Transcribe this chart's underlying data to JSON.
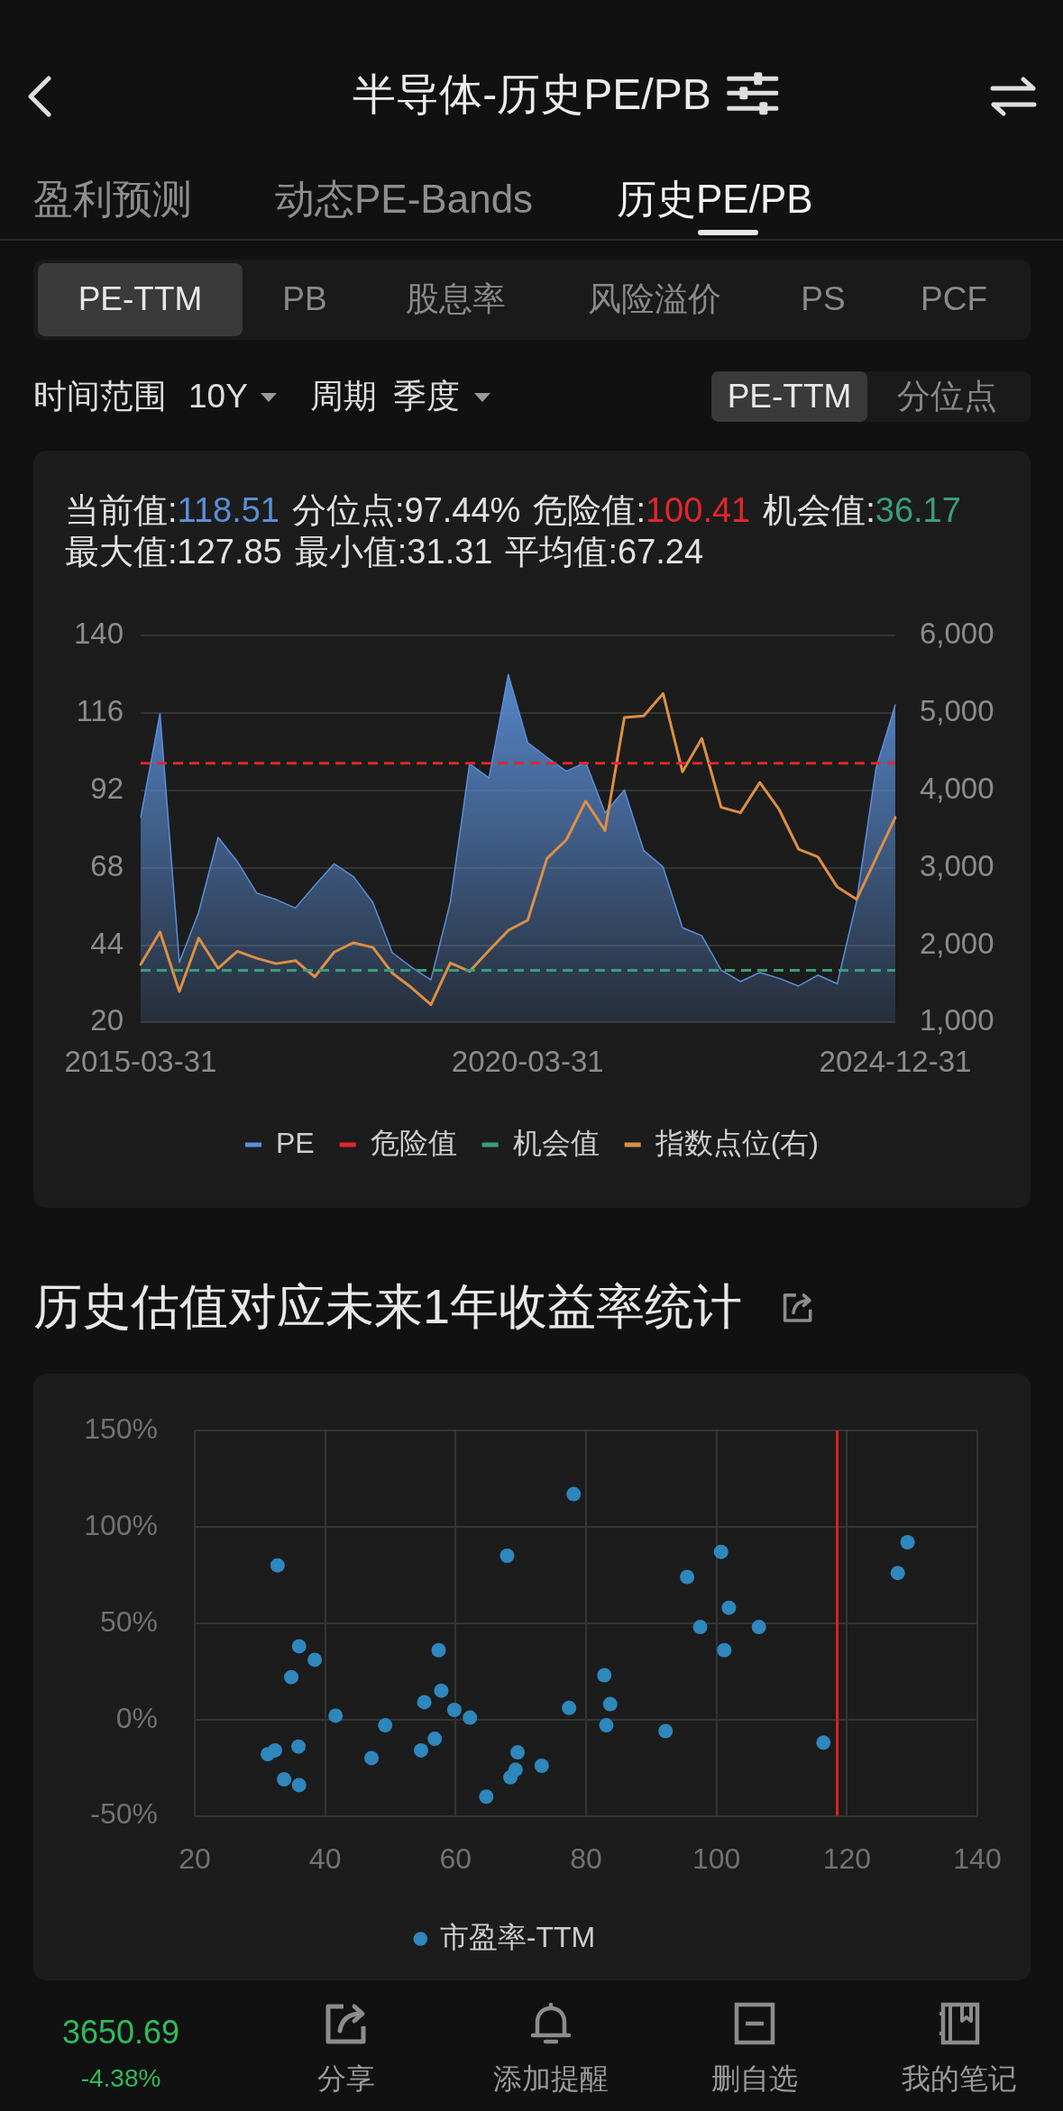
{
  "chart_data": [
    {
      "type": "other",
      "title": "半导体-历史PE/PB",
      "annotations": [
        "盈利预测",
        "动态PE-Bands",
        "历史PE/PB",
        "PE-TTM",
        "PB",
        "股息率",
        "风险溢价",
        "PS",
        "PCF",
        "时间范围",
        "10Y",
        "周期",
        "季度",
        "PE-TTM",
        "分位点"
      ]
    },
    {
      "type": "area",
      "annotations": [
        "当前值:118.51",
        "分位点:97.44%",
        "危险值:100.41",
        "机会值:36.17",
        "最大值:127.85",
        "最小值:31.31",
        "平均值:67.24"
      ],
      "categories": [
        "2015-03-31",
        null,
        null,
        null,
        null,
        null,
        null,
        null,
        null,
        null,
        null,
        null,
        null,
        null,
        null,
        null,
        null,
        null,
        null,
        null,
        "2020-03-31",
        null,
        null,
        null,
        null,
        null,
        null,
        null,
        null,
        null,
        null,
        null,
        null,
        null,
        null,
        null,
        null,
        null,
        null,
        "2024-12-31"
      ],
      "series": [
        {
          "name": "PE",
          "type": "area",
          "color": "#5b8fd8",
          "values": [
            83.6,
            115.8,
            38.6,
            54.2,
            77.4,
            69.9,
            60.1,
            58.1,
            55.5,
            62.5,
            69.2,
            65.2,
            57.2,
            41.7,
            37.1,
            33.2,
            57.2,
            100.2,
            95.8,
            127.9,
            106.8,
            102.2,
            97.9,
            100.7,
            85.0,
            92.1,
            73.3,
            68.2,
            49.4,
            46.9,
            36.2,
            32.7,
            35.5,
            33.7,
            31.3,
            34.7,
            32.0,
            57.6,
            98.7,
            118.5
          ]
        },
        {
          "name": "指数点位(右)",
          "type": "line",
          "axis": "y2",
          "color": "#dc8f45",
          "values": [
            1750,
            2170,
            1400,
            2090,
            1700,
            1920,
            1830,
            1760,
            1800,
            1590,
            1910,
            2030,
            1970,
            1640,
            1450,
            1230,
            1770,
            1660,
            1930,
            2190,
            2320,
            3120,
            3360,
            3860,
            3480,
            4940,
            4960,
            5250,
            4240,
            4670,
            3780,
            3710,
            4100,
            3750,
            3240,
            3140,
            2750,
            2590,
            3120,
            3650
          ]
        }
      ],
      "ylim": [
        20,
        140
      ],
      "yticks": [
        20,
        44,
        68,
        92,
        116,
        140
      ],
      "y2lim": [
        1000,
        6000
      ],
      "y2ticks": [
        {
          "value": 1000,
          "label": "1,000"
        },
        {
          "value": 2000,
          "label": "2,000"
        },
        {
          "value": 3000,
          "label": "3,000"
        },
        {
          "value": 4000,
          "label": "4,000"
        },
        {
          "value": 5000,
          "label": "5,000"
        },
        {
          "value": 6000,
          "label": "6,000"
        }
      ],
      "ref_lines": [
        {
          "axis": "y",
          "value": 100.41,
          "label": "危险值",
          "color": "#e3262b",
          "line_style": "dashed"
        },
        {
          "axis": "y",
          "value": 36.17,
          "label": "机会值",
          "color": "#3a9e7a",
          "line_style": "dashed"
        }
      ],
      "grid": "y",
      "legend": "bottom"
    },
    {
      "type": "scatter",
      "title": "历史估值对应未来1年收益率统计",
      "marker": "circle",
      "series": [
        {
          "name": "市盈率-TTM",
          "color": "#2e87bd",
          "x": [
            31.2,
            32.3,
            32.7,
            33.7,
            34.8,
            35.9,
            36.0,
            36.0,
            38.4,
            41.6,
            47.1,
            49.2,
            54.7,
            55.2,
            56.8,
            57.4,
            57.8,
            59.8,
            62.2,
            64.7,
            67.9,
            68.4,
            69.2,
            69.5,
            73.2,
            77.4,
            78.1,
            82.8,
            83.1,
            83.7,
            92.2,
            95.5,
            97.5,
            100.7,
            101.2,
            101.9,
            106.5,
            116.4,
            127.8,
            129.3
          ],
          "values": [
            -18,
            -16,
            80,
            -31,
            22,
            -14,
            38,
            -34,
            31,
            2,
            -20,
            -3,
            -16,
            9,
            -10,
            36,
            15,
            5,
            1,
            -40,
            85,
            -30,
            -26,
            -17,
            -24,
            6,
            117,
            23,
            -3,
            8,
            -6,
            74,
            48,
            87,
            36,
            58,
            48,
            -12,
            76,
            92
          ]
        }
      ],
      "xlim": [
        20,
        140
      ],
      "xticks": [
        20,
        40,
        60,
        80,
        100,
        120,
        140
      ],
      "ylim": [
        -50,
        150
      ],
      "yticks": [
        {
          "value": -50,
          "label": "-50%"
        },
        {
          "value": 0,
          "label": "0%"
        },
        {
          "value": 50,
          "label": "50%"
        },
        {
          "value": 100,
          "label": "100%"
        },
        {
          "value": 150,
          "label": "150%"
        }
      ],
      "ref_lines": [
        {
          "axis": "x",
          "value": 118.51,
          "color": "#e0201c"
        }
      ],
      "grid": true,
      "legend": "bottom"
    },
    {
      "type": "other",
      "annotations": [
        "3650.69",
        "-4.38%",
        "分享",
        "添加提醒",
        "删自选",
        "我的笔记"
      ]
    }
  ]
}
